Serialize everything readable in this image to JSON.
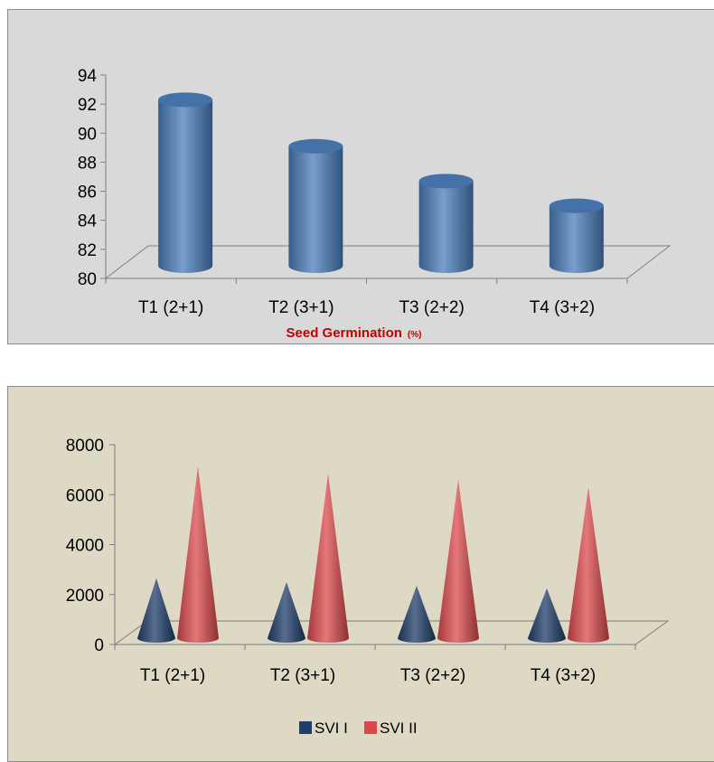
{
  "chart_data": [
    {
      "type": "bar",
      "style": "3d-cylinder",
      "categories": [
        "T1  (2+1)",
        "T2  (3+1)",
        "T3 (2+2)",
        "T4  (3+2)"
      ],
      "values": [
        92.3,
        89.1,
        86.7,
        85.0
      ],
      "ylim": [
        80,
        94
      ],
      "yticks": [
        80,
        82,
        84,
        86,
        88,
        90,
        92,
        94
      ],
      "xlabel": "Seed Germination",
      "xlabel_unit": "(%)",
      "ylabel": "",
      "legend": "none",
      "colors": {
        "bar": "#4a7ebb",
        "background": "#d9d9d9",
        "title": "#c00000"
      }
    },
    {
      "type": "bar",
      "style": "3d-cone",
      "categories": [
        "T1  (2+1)",
        "T2  (3+1)",
        "T3 (2+2)",
        "T4  (3+2)"
      ],
      "series": [
        {
          "name": "SVI I",
          "values": [
            2650,
            2500,
            2350,
            2250
          ],
          "color": "#1f3e6b"
        },
        {
          "name": "SVI II",
          "values": [
            7150,
            6850,
            6600,
            6300
          ],
          "color": "#d9494c"
        }
      ],
      "ylim": [
        0,
        8000
      ],
      "yticks": [
        0,
        2000,
        4000,
        6000,
        8000
      ],
      "xlabel": "",
      "ylabel": "",
      "legend": "bottom",
      "colors": {
        "background": "#ddd9c4"
      }
    }
  ]
}
